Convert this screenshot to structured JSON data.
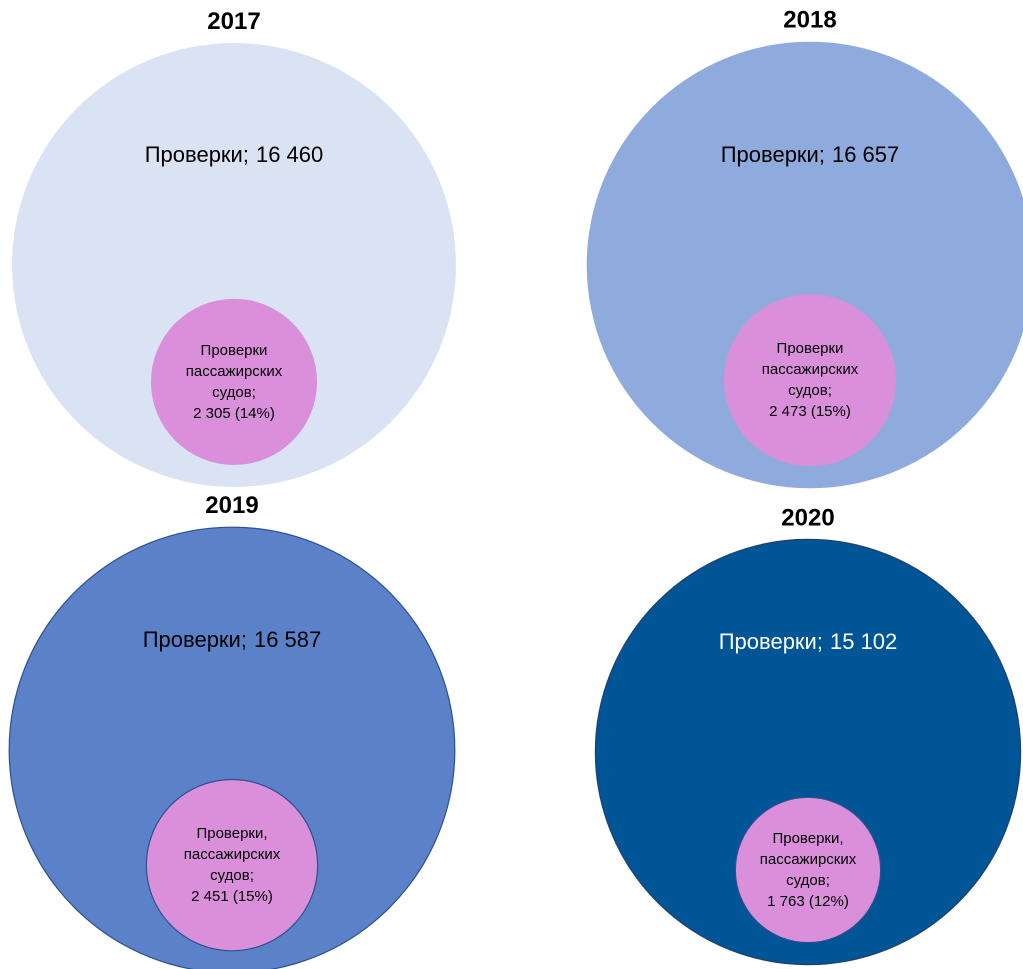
{
  "chart_data": [
    {
      "type": "nested_circles",
      "title": "2017",
      "label_color": "#000000",
      "series": [
        {
          "name": "Проверки;",
          "color": "#dae3f3",
          "stroke": "none",
          "values": [
            16460
          ],
          "value_labels": [
            "16 460"
          ]
        },
        {
          "name": "Проверки пассажирских судов;",
          "color": "#da8fda",
          "stroke": "none",
          "values": [
            2305
          ],
          "value_labels": [
            "2 305 (14%)"
          ]
        }
      ]
    },
    {
      "type": "nested_circles",
      "title": "2018",
      "label_color": "#000000",
      "series": [
        {
          "name": "Проверки;",
          "color": "#8faadc",
          "stroke": "none",
          "values": [
            16657
          ],
          "value_labels": [
            "16 657"
          ]
        },
        {
          "name": "Проверки пассажирских судов;",
          "color": "#da8fda",
          "stroke": "none",
          "values": [
            2473
          ],
          "value_labels": [
            "2 473 (15%)"
          ]
        }
      ]
    },
    {
      "type": "nested_circles",
      "title": "2019",
      "label_color": "#000000",
      "series": [
        {
          "name": "Проверки;",
          "color": "#5b82c9",
          "stroke": "#2f4f8f",
          "values": [
            16587
          ],
          "value_labels": [
            "16 587"
          ]
        },
        {
          "name": "Проверки, пассажирских судов;",
          "color": "#da8fda",
          "stroke": "#2f4f8f",
          "values": [
            2451
          ],
          "value_labels": [
            "2 451 (15%)"
          ]
        }
      ]
    },
    {
      "type": "nested_circles",
      "title": "2020",
      "label_color": "#ffffff",
      "series": [
        {
          "name": "Проверки;",
          "color": "#005597",
          "stroke": "#1f3f6f",
          "values": [
            15102
          ],
          "value_labels": [
            "15 102"
          ]
        },
        {
          "name": "Проверки, пассажирских судов;",
          "color": "#da8fda",
          "stroke": "#2f4f8f",
          "values": [
            1763
          ],
          "value_labels": [
            "1 763 (12%)"
          ]
        }
      ]
    }
  ]
}
